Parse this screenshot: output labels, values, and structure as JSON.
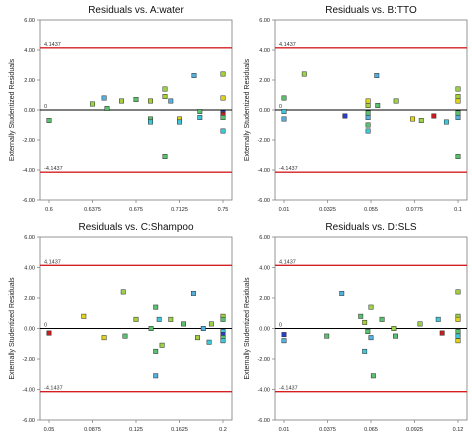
{
  "colors": {
    "limit_line": "#d42020",
    "zero_line": "#000000",
    "frame": "#7a7a7a",
    "marker_stroke": "#2a2a2a",
    "marker_palette": [
      "#2a3ec8",
      "#c81e1e",
      "#e0d51c",
      "#9bd24a",
      "#5bc070",
      "#3fc6d8",
      "#54b0dc",
      "#a6cf3c"
    ]
  },
  "chart_data": [
    {
      "type": "scatter",
      "title": "Residuals vs. A:water",
      "xlabel": "",
      "ylabel": "Externally Studentized Residuals",
      "xlim": [
        0.6,
        0.75
      ],
      "ylim": [
        -6,
        6
      ],
      "xticks": [
        "0.6",
        "0.6375",
        "0.675",
        "0.7125",
        "0.75"
      ],
      "yticks": [
        "6.00",
        "4.00",
        "2.00",
        "0.00",
        "-2.00",
        "-4.00",
        "-6.00"
      ],
      "limits": {
        "upper": 4.1437,
        "upper_label": "4.1437",
        "lower": -4.1437,
        "lower_label": "-4.1437",
        "zero_label": "0"
      },
      "grid": false,
      "points": [
        {
          "x": 0.6,
          "y": -0.7,
          "c": "#5bc070"
        },
        {
          "x": 0.6375,
          "y": 0.4,
          "c": "#9bd24a"
        },
        {
          "x": 0.6475,
          "y": 0.8,
          "c": "#54b0dc"
        },
        {
          "x": 0.65,
          "y": 0.1,
          "c": "#5bc070"
        },
        {
          "x": 0.6625,
          "y": 0.6,
          "c": "#a6cf3c"
        },
        {
          "x": 0.675,
          "y": 0.7,
          "c": "#5bc070"
        },
        {
          "x": 0.6875,
          "y": -0.6,
          "c": "#5bc070"
        },
        {
          "x": 0.6875,
          "y": 0.6,
          "c": "#a6cf3c"
        },
        {
          "x": 0.6875,
          "y": -0.8,
          "c": "#3fc6d8"
        },
        {
          "x": 0.7,
          "y": 1.4,
          "c": "#9bd24a"
        },
        {
          "x": 0.7,
          "y": 0.9,
          "c": "#a6cf3c"
        },
        {
          "x": 0.7,
          "y": -3.1,
          "c": "#5bc070"
        },
        {
          "x": 0.705,
          "y": 0.6,
          "c": "#54b0dc"
        },
        {
          "x": 0.7125,
          "y": -0.6,
          "c": "#e0d51c"
        },
        {
          "x": 0.7125,
          "y": -0.8,
          "c": "#3fc6d8"
        },
        {
          "x": 0.725,
          "y": 2.3,
          "c": "#54b0dc"
        },
        {
          "x": 0.73,
          "y": -0.1,
          "c": "#5bc070"
        },
        {
          "x": 0.73,
          "y": -0.5,
          "c": "#3fc6d8"
        },
        {
          "x": 0.75,
          "y": 2.4,
          "c": "#a6cf3c"
        },
        {
          "x": 0.75,
          "y": 0.8,
          "c": "#e0d51c"
        },
        {
          "x": 0.75,
          "y": -0.2,
          "c": "#2a3ec8"
        },
        {
          "x": 0.75,
          "y": -0.3,
          "c": "#c81e1e"
        },
        {
          "x": 0.75,
          "y": -0.5,
          "c": "#5bc070"
        },
        {
          "x": 0.75,
          "y": -1.4,
          "c": "#3fc6d8"
        }
      ]
    },
    {
      "type": "scatter",
      "title": "Residuals vs. B:TTO",
      "xlabel": "",
      "ylabel": "Externally Studentized Residuals",
      "xlim": [
        0.01,
        0.1
      ],
      "ylim": [
        -6,
        6
      ],
      "xticks": [
        "0.01",
        "0.0325",
        "0.055",
        "0.0775",
        "0.1"
      ],
      "yticks": [
        "6.00",
        "4.00",
        "2.00",
        "0.00",
        "-2.00",
        "-4.00",
        "-6.00"
      ],
      "limits": {
        "upper": 4.1437,
        "upper_label": "4.1437",
        "lower": -4.1437,
        "lower_label": "-4.1437",
        "zero_label": "0"
      },
      "grid": false,
      "points": [
        {
          "x": 0.01,
          "y": 0.8,
          "c": "#5bc070"
        },
        {
          "x": 0.01,
          "y": -0.1,
          "c": "#3fc6d8"
        },
        {
          "x": 0.01,
          "y": -0.6,
          "c": "#54b0dc"
        },
        {
          "x": 0.0205,
          "y": 2.4,
          "c": "#9bd24a"
        },
        {
          "x": 0.0415,
          "y": -0.4,
          "c": "#2a3ec8"
        },
        {
          "x": 0.0535,
          "y": 0.6,
          "c": "#e0d51c"
        },
        {
          "x": 0.0535,
          "y": 0.3,
          "c": "#a6cf3c"
        },
        {
          "x": 0.0535,
          "y": -0.2,
          "c": "#5bc070"
        },
        {
          "x": 0.0535,
          "y": -0.5,
          "c": "#54b0dc"
        },
        {
          "x": 0.0535,
          "y": -1.0,
          "c": "#5bc070"
        },
        {
          "x": 0.0535,
          "y": -1.4,
          "c": "#3fc6d8"
        },
        {
          "x": 0.058,
          "y": 2.3,
          "c": "#54b0dc"
        },
        {
          "x": 0.0585,
          "y": 0.3,
          "c": "#5bc070"
        },
        {
          "x": 0.068,
          "y": 0.6,
          "c": "#9bd24a"
        },
        {
          "x": 0.0765,
          "y": -0.6,
          "c": "#e0d51c"
        },
        {
          "x": 0.081,
          "y": -0.7,
          "c": "#9bd24a"
        },
        {
          "x": 0.0875,
          "y": -0.4,
          "c": "#c81e1e"
        },
        {
          "x": 0.094,
          "y": -0.8,
          "c": "#3fc6d8"
        },
        {
          "x": 0.1,
          "y": 1.4,
          "c": "#9bd24a"
        },
        {
          "x": 0.1,
          "y": 0.9,
          "c": "#a6cf3c"
        },
        {
          "x": 0.1,
          "y": 0.6,
          "c": "#e0d51c"
        },
        {
          "x": 0.1,
          "y": -0.2,
          "c": "#5bc070"
        },
        {
          "x": 0.1,
          "y": -0.5,
          "c": "#54b0dc"
        },
        {
          "x": 0.1,
          "y": -3.1,
          "c": "#5bc070"
        }
      ]
    },
    {
      "type": "scatter",
      "title": "Residuals vs. C:Shampoo",
      "xlabel": "",
      "ylabel": "Externally Studentized Residuals",
      "xlim": [
        0.05,
        0.2
      ],
      "ylim": [
        -6,
        6
      ],
      "xticks": [
        "0.05",
        "0.0875",
        "0.125",
        "0.1625",
        "0.2"
      ],
      "yticks": [
        "6.00",
        "4.00",
        "2.00",
        "0.00",
        "-2.00",
        "-4.00",
        "-6.00"
      ],
      "limits": {
        "upper": 4.1437,
        "upper_label": "4.1437",
        "lower": -4.1437,
        "lower_label": "-4.1437",
        "zero_label": "0"
      },
      "grid": false,
      "points": [
        {
          "x": 0.05,
          "y": -0.3,
          "c": "#c81e1e"
        },
        {
          "x": 0.08,
          "y": 0.8,
          "c": "#e0d51c"
        },
        {
          "x": 0.0975,
          "y": -0.6,
          "c": "#e0d51c"
        },
        {
          "x": 0.114,
          "y": 2.4,
          "c": "#9bd24a"
        },
        {
          "x": 0.1155,
          "y": -0.5,
          "c": "#5bc070"
        },
        {
          "x": 0.125,
          "y": 0.6,
          "c": "#a6cf3c"
        },
        {
          "x": 0.138,
          "y": 0.0,
          "c": "#5bc070"
        },
        {
          "x": 0.142,
          "y": 1.4,
          "c": "#5bc070"
        },
        {
          "x": 0.142,
          "y": -1.5,
          "c": "#5bc070"
        },
        {
          "x": 0.142,
          "y": -3.1,
          "c": "#54b0dc"
        },
        {
          "x": 0.145,
          "y": 0.6,
          "c": "#3fc6d8"
        },
        {
          "x": 0.1475,
          "y": -1.1,
          "c": "#9bd24a"
        },
        {
          "x": 0.155,
          "y": 0.6,
          "c": "#9bd24a"
        },
        {
          "x": 0.166,
          "y": 0.3,
          "c": "#5bc070"
        },
        {
          "x": 0.1745,
          "y": 2.3,
          "c": "#54b0dc"
        },
        {
          "x": 0.178,
          "y": -0.6,
          "c": "#a6cf3c"
        },
        {
          "x": 0.183,
          "y": 0.0,
          "c": "#54b0dc"
        },
        {
          "x": 0.188,
          "y": -0.9,
          "c": "#3fc6d8"
        },
        {
          "x": 0.19,
          "y": 0.3,
          "c": "#9bd24a"
        },
        {
          "x": 0.2,
          "y": 0.8,
          "c": "#a6cf3c"
        },
        {
          "x": 0.2,
          "y": 0.6,
          "c": "#5bc070"
        },
        {
          "x": 0.2,
          "y": -0.2,
          "c": "#3fc6d8"
        },
        {
          "x": 0.2,
          "y": -0.4,
          "c": "#2a3ec8"
        },
        {
          "x": 0.2,
          "y": -0.6,
          "c": "#5bc070"
        },
        {
          "x": 0.2,
          "y": -0.8,
          "c": "#3fc6d8"
        }
      ]
    },
    {
      "type": "scatter",
      "title": "Residuals vs. D:SLS",
      "xlabel": "",
      "ylabel": "Externally Studentized Residuals",
      "xlim": [
        0.01,
        0.12
      ],
      "ylim": [
        -6,
        6
      ],
      "xticks": [
        "0.01",
        "0.0375",
        "0.065",
        "0.0925",
        "0.12"
      ],
      "yticks": [
        "6.00",
        "4.00",
        "2.00",
        "0.00",
        "-2.00",
        "-4.00",
        "-6.00"
      ],
      "limits": {
        "upper": 4.1437,
        "upper_label": "4.1437",
        "lower": -4.1437,
        "lower_label": "-4.1437",
        "zero_label": "0"
      },
      "grid": false,
      "points": [
        {
          "x": 0.01,
          "y": -0.4,
          "c": "#2a3ec8"
        },
        {
          "x": 0.01,
          "y": -0.8,
          "c": "#54b0dc"
        },
        {
          "x": 0.037,
          "y": -0.5,
          "c": "#5bc070"
        },
        {
          "x": 0.0465,
          "y": 2.3,
          "c": "#54b0dc"
        },
        {
          "x": 0.0585,
          "y": 0.8,
          "c": "#5bc070"
        },
        {
          "x": 0.061,
          "y": 0.4,
          "c": "#a6cf3c"
        },
        {
          "x": 0.061,
          "y": -1.5,
          "c": "#3fc6d8"
        },
        {
          "x": 0.063,
          "y": -0.2,
          "c": "#5bc070"
        },
        {
          "x": 0.065,
          "y": 1.4,
          "c": "#9bd24a"
        },
        {
          "x": 0.065,
          "y": -0.6,
          "c": "#54b0dc"
        },
        {
          "x": 0.0665,
          "y": -3.1,
          "c": "#5bc070"
        },
        {
          "x": 0.072,
          "y": 0.6,
          "c": "#5bc070"
        },
        {
          "x": 0.0795,
          "y": 0.0,
          "c": "#9bd24a"
        },
        {
          "x": 0.0805,
          "y": -0.5,
          "c": "#5bc070"
        },
        {
          "x": 0.096,
          "y": 0.3,
          "c": "#9bd24a"
        },
        {
          "x": 0.1075,
          "y": 0.6,
          "c": "#3fc6d8"
        },
        {
          "x": 0.11,
          "y": -0.3,
          "c": "#c81e1e"
        },
        {
          "x": 0.12,
          "y": 2.4,
          "c": "#a6cf3c"
        },
        {
          "x": 0.12,
          "y": 0.8,
          "c": "#9bd24a"
        },
        {
          "x": 0.12,
          "y": 0.6,
          "c": "#e0d51c"
        },
        {
          "x": 0.12,
          "y": -0.2,
          "c": "#5bc070"
        },
        {
          "x": 0.12,
          "y": -0.5,
          "c": "#3fc6d8"
        },
        {
          "x": 0.12,
          "y": -0.8,
          "c": "#e0d51c"
        }
      ]
    }
  ]
}
